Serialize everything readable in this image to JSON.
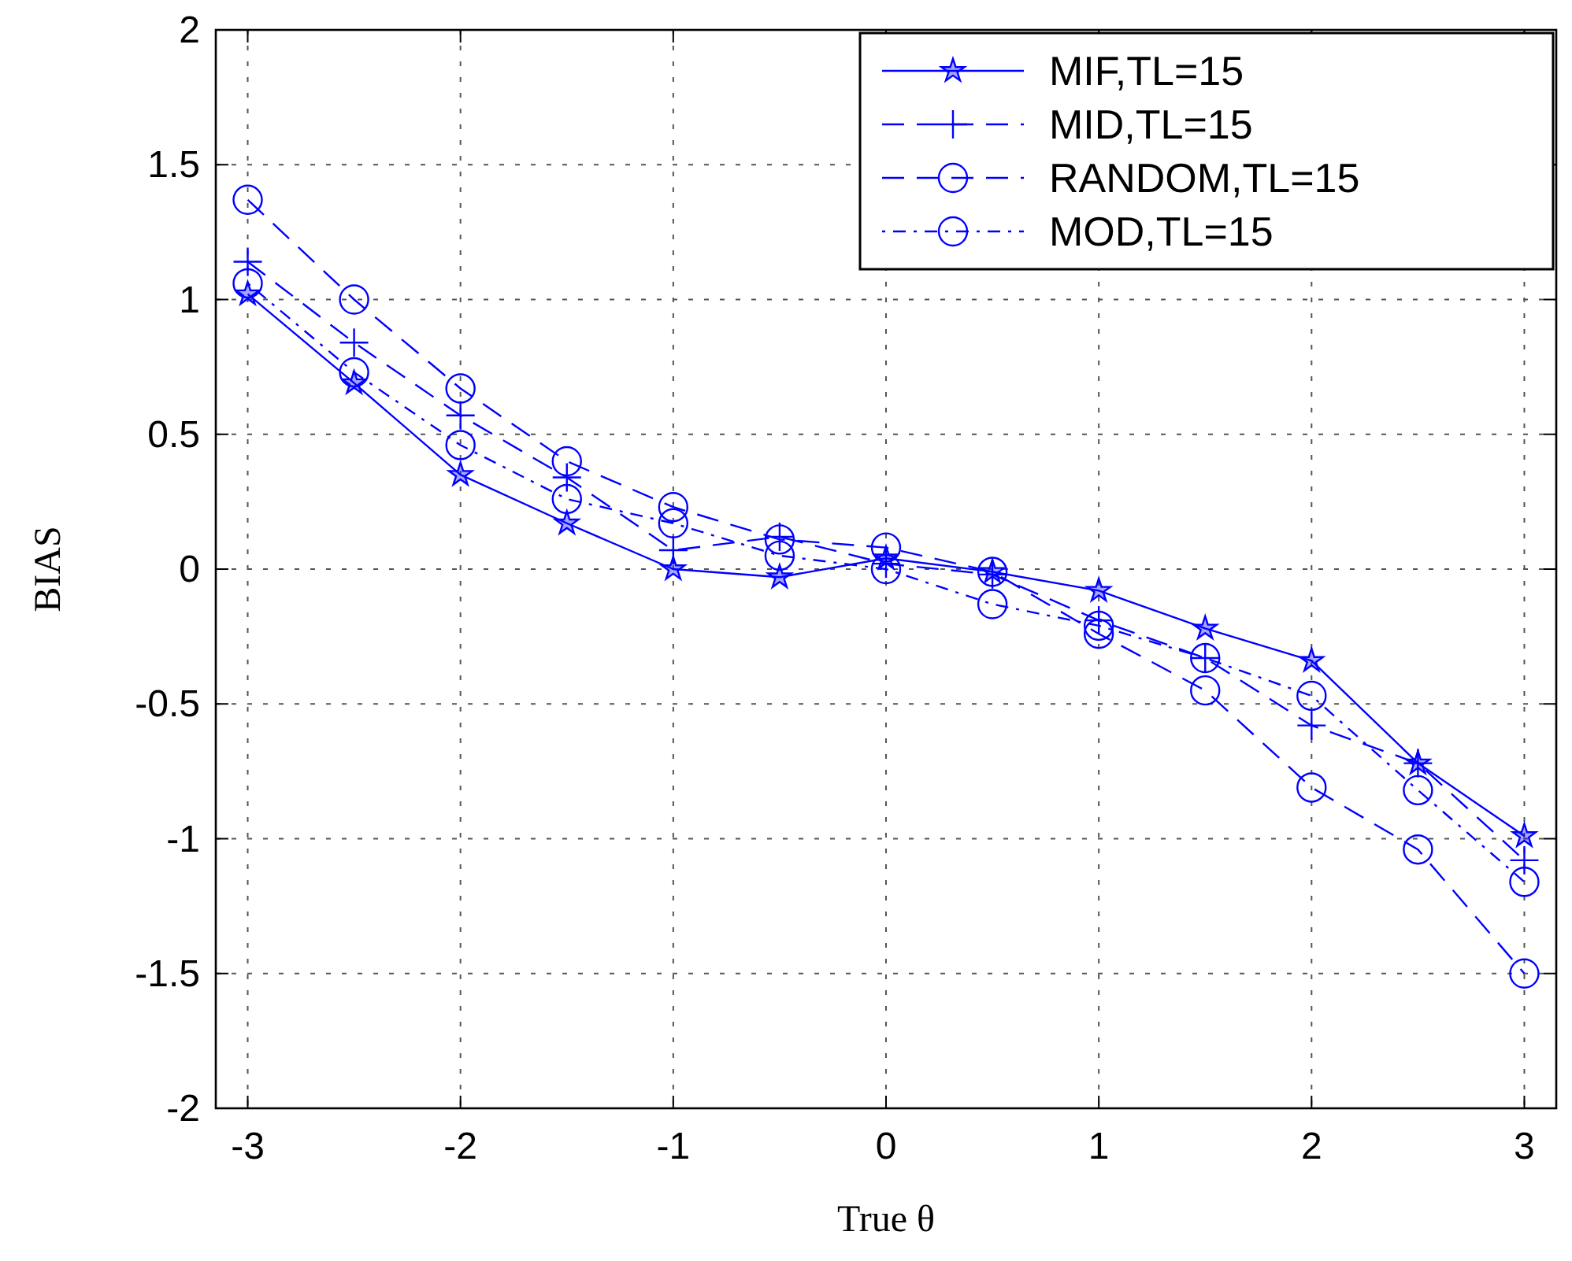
{
  "chart_data": {
    "type": "line",
    "xlabel": "True θ",
    "ylabel": "BIAS",
    "x": [
      -3,
      -2.5,
      -2,
      -1.5,
      -1,
      -0.5,
      0,
      0.5,
      1,
      1.5,
      2,
      2.5,
      3
    ],
    "series": [
      {
        "name": "MIF,TL=15",
        "color": "#0000ff",
        "marker": "star",
        "line_style": "solid",
        "values": [
          1.02,
          0.69,
          0.35,
          0.17,
          0.0,
          -0.03,
          0.04,
          -0.01,
          -0.08,
          -0.22,
          -0.34,
          -0.72,
          -0.99
        ]
      },
      {
        "name": "MID,TL=15",
        "color": "#0000ff",
        "marker": "cross",
        "line_style": "dashed",
        "values": [
          1.14,
          0.84,
          0.57,
          0.34,
          0.07,
          0.12,
          0.02,
          -0.02,
          -0.19,
          -0.33,
          -0.58,
          -0.72,
          -1.08
        ]
      },
      {
        "name": "RANDOM,TL=15",
        "color": "#0000ff",
        "marker": "circle",
        "line_style": "dashed",
        "values": [
          1.37,
          1.0,
          0.67,
          0.4,
          0.23,
          0.11,
          0.08,
          -0.01,
          -0.24,
          -0.45,
          -0.81,
          -1.04,
          -1.5
        ]
      },
      {
        "name": "MOD,TL=15",
        "color": "#0000ff",
        "marker": "circle",
        "line_style": "dotted",
        "values": [
          1.06,
          0.73,
          0.46,
          0.26,
          0.17,
          0.05,
          0.0,
          -0.13,
          -0.21,
          -0.33,
          -0.47,
          -0.82,
          -1.16
        ]
      }
    ],
    "xlim": [
      -3.15,
      3.15
    ],
    "ylim": [
      -2,
      2
    ],
    "xticks": [
      -3,
      -2,
      -1,
      0,
      1,
      2,
      3
    ],
    "yticks": [
      -2,
      -1.5,
      -1,
      -0.5,
      0,
      0.5,
      1,
      1.5,
      2
    ],
    "grid": true,
    "legend": "top right"
  }
}
